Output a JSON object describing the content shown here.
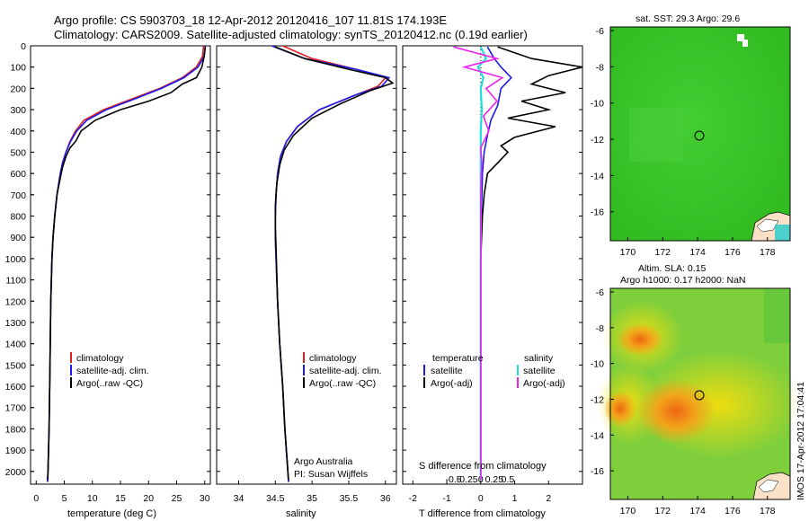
{
  "title_line1": "Argo profile: CS 5903703_18 12-Apr-2012 20120416_107 11.81S 174.193E",
  "title_line2": "Climatology: CARS2009. Satellite-adjusted climatology: synTS_20120412.nc (0.19d earlier)",
  "depth_ticks": [
    "0",
    "100",
    "200",
    "300",
    "400",
    "500",
    "600",
    "700",
    "800",
    "900",
    "1000",
    "1100",
    "1200",
    "1300",
    "1400",
    "1500",
    "1600",
    "1700",
    "1800",
    "1900",
    "2000"
  ],
  "temperature_ticks": [
    "0",
    "5",
    "10",
    "15",
    "20",
    "25",
    "30"
  ],
  "salinity_ticks": [
    "34",
    "34.5",
    "35",
    "35.5",
    "36"
  ],
  "diff_ticks_T": [
    "-2",
    "-1",
    "0",
    "1",
    "2"
  ],
  "diff_ticks_S": [
    "-0.5",
    "-0.25",
    "0",
    "0.25",
    "0.5"
  ],
  "legend_profile": {
    "clim": "climatology",
    "sat": "satellite-adj. clim.",
    "argo": "Argo(..raw -QC)"
  },
  "legend_diff": {
    "temp_header": "temperature",
    "sal_header": "salinity",
    "sat": "satellite",
    "argo": "Argo(-adj)"
  },
  "argo_australia": "Argo Australia",
  "pi_name": "PI: Susan Wijffels",
  "s_diff_label": "S difference from climatology",
  "map_top_title": "sat. SST: 29.3 Argo: 29.6",
  "map_bottom_title1": "Altim. SLA: 0.15",
  "map_bottom_title2": "Argo h1000: 0.17 h2000: NaN",
  "map_lat_ticks": [
    "-6",
    "-8",
    "-10",
    "-12",
    "-14",
    "-16"
  ],
  "map_lon_ticks": [
    "170",
    "172",
    "174",
    "176",
    "178"
  ],
  "imos_stamp": "IMOS 17-Apr-2012 17:04:41",
  "colors": {
    "climatology": "#e02020",
    "satellite": "#1a1aee",
    "argo": "#000000",
    "sal_satellite": "#22dddd",
    "sal_argo": "#ee22ee"
  },
  "chart_data": [
    {
      "type": "line",
      "xlabel": "temperature (deg C)",
      "ylabel": "",
      "xlim": [
        -1,
        31
      ],
      "ylim": [
        2060,
        0
      ],
      "series": [
        {
          "name": "climatology",
          "x": [
            29.8,
            29.6,
            28.5,
            26,
            22,
            17,
            12,
            8.5,
            7,
            6,
            5.3,
            4.7,
            4.3,
            3.7,
            3.3,
            3.0,
            2.8,
            2.6,
            2.5,
            2.4,
            2.3,
            2.2,
            2.1,
            2.0
          ],
          "y": [
            0,
            50,
            100,
            150,
            200,
            250,
            300,
            350,
            400,
            450,
            500,
            550,
            600,
            700,
            800,
            900,
            1000,
            1200,
            1400,
            1600,
            1800,
            1900,
            2000,
            2050
          ]
        },
        {
          "name": "satellite-adj. clim.",
          "x": [
            30.1,
            29.9,
            28.8,
            26.3,
            22.3,
            17.5,
            12.5,
            9,
            7.2,
            6.1,
            5.3,
            4.7,
            4.3,
            3.7,
            3.3,
            3.0,
            2.8,
            2.6,
            2.5,
            2.4,
            2.3,
            2.2,
            2.1,
            2.0
          ],
          "y": [
            0,
            50,
            100,
            150,
            200,
            250,
            300,
            350,
            400,
            450,
            500,
            550,
            600,
            700,
            800,
            900,
            1000,
            1200,
            1400,
            1600,
            1800,
            1900,
            2000,
            2050
          ]
        },
        {
          "name": "Argo(..raw -QC)",
          "x": [
            30.1,
            29.9,
            29.5,
            28.5,
            26,
            24,
            20,
            15,
            10.5,
            8,
            7,
            6,
            5.3,
            4.7,
            4.3,
            3.7,
            3.3,
            3.0,
            2.8,
            2.6,
            2.5,
            2.4,
            2.3,
            2.2,
            2.1,
            2.05
          ],
          "y": [
            5,
            50,
            100,
            150,
            180,
            220,
            260,
            300,
            350,
            400,
            450,
            480,
            520,
            570,
            620,
            700,
            800,
            900,
            1000,
            1200,
            1400,
            1600,
            1800,
            1900,
            2000,
            2040
          ]
        }
      ]
    },
    {
      "type": "line",
      "xlabel": "salinity",
      "ylabel": "",
      "xlim": [
        33.7,
        36.15
      ],
      "ylim": [
        2060,
        0
      ],
      "series": [
        {
          "name": "climatology",
          "x": [
            34.6,
            35.0,
            35.6,
            36.0,
            35.9,
            35.6,
            35.1,
            34.8,
            34.65,
            34.57,
            34.53,
            34.51,
            34.5,
            34.5,
            34.51,
            34.53,
            34.56,
            34.6,
            34.63,
            34.66,
            34.68
          ],
          "y": [
            0,
            60,
            110,
            150,
            190,
            230,
            300,
            380,
            450,
            520,
            600,
            700,
            800,
            900,
            1000,
            1200,
            1400,
            1600,
            1800,
            1950,
            2050
          ]
        },
        {
          "name": "satellite-adj. clim.",
          "x": [
            34.45,
            34.9,
            35.6,
            36.05,
            35.95,
            35.6,
            35.1,
            34.8,
            34.65,
            34.57,
            34.53,
            34.51,
            34.5,
            34.5,
            34.51,
            34.53,
            34.56,
            34.6,
            34.63,
            34.66,
            34.68
          ],
          "y": [
            0,
            60,
            110,
            150,
            190,
            230,
            300,
            380,
            450,
            520,
            600,
            700,
            800,
            900,
            1000,
            1200,
            1400,
            1600,
            1800,
            1950,
            2050
          ]
        },
        {
          "name": "Argo(..raw -QC)",
          "x": [
            34.5,
            34.9,
            35.5,
            36.0,
            36.1,
            35.8,
            35.4,
            35.0,
            34.75,
            34.62,
            34.56,
            34.52,
            34.5,
            34.5,
            34.51,
            34.53,
            34.56,
            34.6,
            34.63,
            34.66,
            34.68
          ],
          "y": [
            5,
            60,
            110,
            150,
            175,
            210,
            270,
            340,
            420,
            490,
            560,
            650,
            750,
            850,
            950,
            1200,
            1400,
            1600,
            1800,
            1950,
            2040
          ]
        }
      ]
    },
    {
      "type": "line",
      "xlabel": "T difference from climatology",
      "ylabel": "",
      "xlim": [
        -2.3,
        3.0
      ],
      "ylim": [
        2060,
        0
      ],
      "series": [
        {
          "name": "temperature satellite",
          "x": [
            0.2,
            0.4,
            0.6,
            0.9,
            0.6,
            0.5,
            0.3,
            0.2,
            0.1,
            0.05,
            0.02,
            0,
            0,
            0,
            0,
            0,
            0
          ],
          "y": [
            5,
            60,
            100,
            150,
            200,
            280,
            350,
            420,
            500,
            600,
            800,
            1000,
            1200,
            1400,
            1600,
            1800,
            2040
          ]
        },
        {
          "name": "temperature Argo(-adj)",
          "x": [
            0.5,
            1.5,
            3.0,
            2.0,
            1.5,
            2.5,
            1.2,
            2.0,
            0.8,
            2.2,
            1.0,
            0.6,
            0.8,
            0.5,
            0.2,
            0.1,
            0.05,
            0,
            0,
            0,
            0,
            0
          ],
          "y": [
            5,
            60,
            100,
            140,
            180,
            220,
            260,
            300,
            340,
            380,
            430,
            470,
            500,
            550,
            600,
            700,
            800,
            1000,
            1200,
            1600,
            1800,
            2040
          ]
        },
        {
          "name": "salinity satellite",
          "x": [
            0,
            0.1,
            -0.05,
            0.05,
            0.0,
            0.02,
            0,
            0,
            0,
            0,
            0,
            0,
            0
          ],
          "y": [
            5,
            60,
            100,
            150,
            200,
            300,
            400,
            500,
            800,
            1200,
            1600,
            1800,
            2040
          ]
        },
        {
          "name": "salinity Argo(-adj)",
          "x": [
            -0.5,
            0.3,
            -0.3,
            0.4,
            0.1,
            0.3,
            0.05,
            0.15,
            0.0,
            0.02,
            0,
            0,
            0,
            0
          ],
          "y": [
            5,
            60,
            100,
            150,
            200,
            260,
            330,
            400,
            480,
            550,
            700,
            1000,
            1600,
            2040
          ]
        }
      ]
    }
  ]
}
